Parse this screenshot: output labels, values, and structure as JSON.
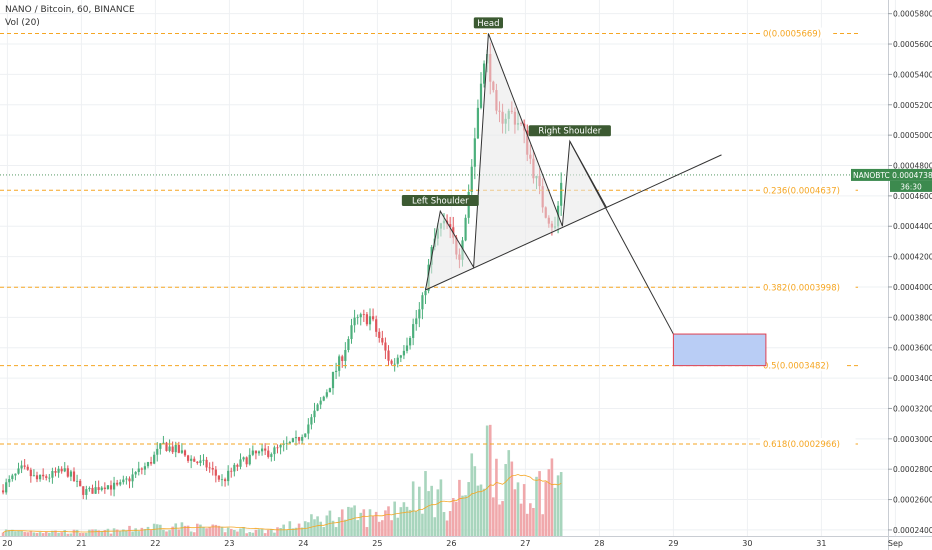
{
  "header": {
    "symbol_line": "NANO / Bitcoin, 60, BINANCE",
    "volume_line": "Vol (20)"
  },
  "price_tag": {
    "label": "NANOBTC",
    "value": "0.0004738",
    "countdown": "36:30",
    "color": "#3c8a4e"
  },
  "colors": {
    "up": "#4caf7c",
    "down": "#e0555b",
    "up_volume": "#a8d5bd",
    "down_volume": "#f0a8ab",
    "fib": "#f5a623",
    "pattern_line": "#333333",
    "pattern_fill": "#e8e8e8",
    "target_fill": "#b9cdf5",
    "target_border": "#e04050",
    "label_bg": "#3c5a32",
    "volume_ma": "#f5a623"
  },
  "chart_data": {
    "type": "candlestick",
    "symbol": "NANO / Bitcoin",
    "timeframe": "60",
    "exchange": "BINANCE",
    "x_ticks": [
      "20",
      "21",
      "22",
      "23",
      "24",
      "25",
      "26",
      "27",
      "28",
      "29",
      "30",
      "31",
      "Sep"
    ],
    "y_ticks": [
      "0.00058000",
      "0.00056000",
      "0.00054000",
      "0.00052000",
      "0.00050000",
      "0.00048000",
      "0.00046000",
      "0.00044000",
      "0.00042000",
      "0.00040000",
      "0.00038000",
      "0.00036000",
      "0.00034000",
      "0.00032000",
      "0.00030000",
      "0.00028000",
      "0.00026000",
      "0.00024000"
    ],
    "ylim": [
      0.000236,
      0.000589
    ],
    "xlim": [
      19.9,
      31.9
    ],
    "price_path": [
      [
        19.9,
        0.000266
      ],
      [
        20.2,
        0.00028
      ],
      [
        20.4,
        0.000273
      ],
      [
        20.6,
        0.000276
      ],
      [
        20.8,
        0.000279
      ],
      [
        21.0,
        0.000266
      ],
      [
        21.1,
        0.000265
      ],
      [
        21.3,
        0.00027
      ],
      [
        21.5,
        0.000268
      ],
      [
        21.7,
        0.000276
      ],
      [
        21.9,
        0.000283
      ],
      [
        22.1,
        0.000296
      ],
      [
        22.3,
        0.000292
      ],
      [
        22.5,
        0.000286
      ],
      [
        22.7,
        0.000282
      ],
      [
        22.9,
        0.000272
      ],
      [
        23.1,
        0.000282
      ],
      [
        23.3,
        0.000289
      ],
      [
        23.6,
        0.000292
      ],
      [
        23.9,
        0.000298
      ],
      [
        24.1,
        0.000312
      ],
      [
        24.3,
        0.00033
      ],
      [
        24.5,
        0.000352
      ],
      [
        24.7,
        0.000378
      ],
      [
        24.9,
        0.00038
      ],
      [
        25.1,
        0.000358
      ],
      [
        25.2,
        0.000348
      ],
      [
        25.4,
        0.000365
      ],
      [
        25.6,
        0.000388
      ],
      [
        25.75,
        0.000428
      ],
      [
        25.85,
        0.00044
      ],
      [
        25.95,
        0.00044
      ],
      [
        26.1,
        0.00042
      ],
      [
        26.2,
        0.00045
      ],
      [
        26.3,
        0.00049
      ],
      [
        26.4,
        0.00054
      ],
      [
        26.5,
        0.000552
      ],
      [
        26.6,
        0.00051
      ],
      [
        26.8,
        0.000515
      ],
      [
        26.95,
        0.000505
      ],
      [
        27.1,
        0.000478
      ],
      [
        27.25,
        0.000452
      ],
      [
        27.4,
        0.000438
      ],
      [
        27.5,
        0.000474
      ]
    ],
    "volume_profile": [
      [
        19.9,
        0.05
      ],
      [
        21.0,
        0.04
      ],
      [
        21.5,
        0.05
      ],
      [
        22.1,
        0.1
      ],
      [
        22.8,
        0.07
      ],
      [
        23.5,
        0.05
      ],
      [
        24.0,
        0.12
      ],
      [
        24.5,
        0.2
      ],
      [
        25.0,
        0.18
      ],
      [
        25.6,
        0.45
      ],
      [
        26.0,
        0.3
      ],
      [
        26.3,
        0.55
      ],
      [
        26.5,
        0.85
      ],
      [
        26.8,
        0.5
      ],
      [
        27.2,
        0.45
      ],
      [
        27.5,
        0.7
      ]
    ],
    "fib_levels": [
      {
        "label": "0(0.0005669)",
        "value": 0.0005669
      },
      {
        "label": "0.236(0.0004637)",
        "value": 0.0004637
      },
      {
        "label": "0.382(0.0003998)",
        "value": 0.0003998
      },
      {
        "label": "0.5(0.0003482)",
        "value": 0.0003482
      },
      {
        "label": "0.618(0.0002966)",
        "value": 0.0002966
      }
    ],
    "current_price": 0.0004738,
    "pattern": {
      "points": [
        {
          "label": "",
          "x": 25.65,
          "y": 0.000398
        },
        {
          "label": "Left Shoulder",
          "x": 25.85,
          "y": 0.00045
        },
        {
          "label": "",
          "x": 26.3,
          "y": 0.000413
        },
        {
          "label": "Head",
          "x": 26.5,
          "y": 0.000567
        },
        {
          "label": "",
          "x": 27.5,
          "y": 0.00044
        },
        {
          "label": "Right Shoulder",
          "x": 27.6,
          "y": 0.000496
        },
        {
          "label": "",
          "x": 28.1,
          "y": 0.000452
        }
      ],
      "neckline": [
        [
          25.65,
          0.000398
        ],
        [
          29.65,
          0.000487
        ]
      ],
      "projection": [
        [
          27.6,
          0.000496
        ],
        [
          29.0,
          0.000369
        ]
      ]
    },
    "target_zone": {
      "x": [
        29.0,
        30.25
      ],
      "y": [
        0.0003482,
        0.000369
      ]
    }
  }
}
